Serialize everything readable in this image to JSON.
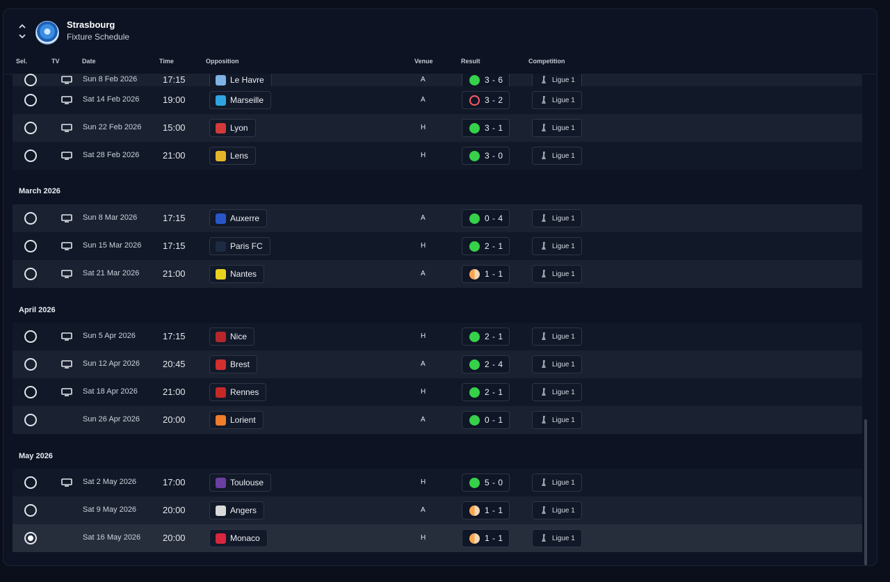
{
  "header": {
    "club": "Strasbourg",
    "subtitle": "Fixture Schedule"
  },
  "columns": {
    "sel": "Sel.",
    "tv": "TV",
    "date": "Date",
    "time": "Time",
    "opposition": "Opposition",
    "venue": "Venue",
    "result": "Result",
    "competition": "Competition"
  },
  "colors": {
    "win": "#37d04a",
    "loss": "#ff5c66",
    "draw": "#ffa54d",
    "background": "#0a0f1b"
  },
  "months": [
    "March 2026",
    "April 2026",
    "May 2026"
  ],
  "fixtures": [
    {
      "date": "Sun 8 Feb 2026",
      "time": "17:15",
      "opponent": "Le Havre",
      "venue": "A",
      "score": "3 - 6",
      "outcome": "win",
      "competition": "Ligue 1",
      "tv": true,
      "selected": false,
      "crest_color": "#7fb2e5"
    },
    {
      "date": "Sat 14 Feb 2026",
      "time": "19:00",
      "opponent": "Marseille",
      "venue": "A",
      "score": "3 - 2",
      "outcome": "loss",
      "competition": "Ligue 1",
      "tv": true,
      "selected": false,
      "crest_color": "#2fa4e0"
    },
    {
      "date": "Sun 22 Feb 2026",
      "time": "15:00",
      "opponent": "Lyon",
      "venue": "H",
      "score": "3 - 1",
      "outcome": "win",
      "competition": "Ligue 1",
      "tv": true,
      "selected": false,
      "crest_color": "#d23a3a"
    },
    {
      "date": "Sat 28 Feb 2026",
      "time": "21:00",
      "opponent": "Lens",
      "venue": "H",
      "score": "3 - 0",
      "outcome": "win",
      "competition": "Ligue 1",
      "tv": true,
      "selected": false,
      "crest_color": "#e5b52a"
    },
    {
      "date": "Sun 8 Mar 2026",
      "time": "17:15",
      "opponent": "Auxerre",
      "venue": "A",
      "score": "0 - 4",
      "outcome": "win",
      "competition": "Ligue 1",
      "tv": true,
      "selected": false,
      "crest_color": "#2a55c9"
    },
    {
      "date": "Sun 15 Mar 2026",
      "time": "17:15",
      "opponent": "Paris FC",
      "venue": "H",
      "score": "2 - 1",
      "outcome": "win",
      "competition": "Ligue 1",
      "tv": true,
      "selected": false,
      "crest_color": "#1d2a44"
    },
    {
      "date": "Sat 21 Mar 2026",
      "time": "21:00",
      "opponent": "Nantes",
      "venue": "A",
      "score": "1 - 1",
      "outcome": "draw",
      "competition": "Ligue 1",
      "tv": true,
      "selected": false,
      "crest_color": "#e8d21e"
    },
    {
      "date": "Sun 5 Apr 2026",
      "time": "17:15",
      "opponent": "Nice",
      "venue": "H",
      "score": "2 - 1",
      "outcome": "win",
      "competition": "Ligue 1",
      "tv": true,
      "selected": false,
      "crest_color": "#b8262c"
    },
    {
      "date": "Sun 12 Apr 2026",
      "time": "20:45",
      "opponent": "Brest",
      "venue": "A",
      "score": "2 - 4",
      "outcome": "win",
      "competition": "Ligue 1",
      "tv": true,
      "selected": false,
      "crest_color": "#d32f2f"
    },
    {
      "date": "Sat 18 Apr 2026",
      "time": "21:00",
      "opponent": "Rennes",
      "venue": "H",
      "score": "2 - 1",
      "outcome": "win",
      "competition": "Ligue 1",
      "tv": true,
      "selected": false,
      "crest_color": "#c62828"
    },
    {
      "date": "Sun 26 Apr 2026",
      "time": "20:00",
      "opponent": "Lorient",
      "venue": "A",
      "score": "0 - 1",
      "outcome": "win",
      "competition": "Ligue 1",
      "tv": false,
      "selected": false,
      "crest_color": "#ef7d2a"
    },
    {
      "date": "Sat 2 May 2026",
      "time": "17:00",
      "opponent": "Toulouse",
      "venue": "H",
      "score": "5 - 0",
      "outcome": "win",
      "competition": "Ligue 1",
      "tv": true,
      "selected": false,
      "crest_color": "#6a3fa0"
    },
    {
      "date": "Sat 9 May 2026",
      "time": "20:00",
      "opponent": "Angers",
      "venue": "A",
      "score": "1 - 1",
      "outcome": "draw",
      "competition": "Ligue 1",
      "tv": false,
      "selected": false,
      "crest_color": "#d9d9d9"
    },
    {
      "date": "Sat 16 May 2026",
      "time": "20:00",
      "opponent": "Monaco",
      "venue": "H",
      "score": "1 - 1",
      "outcome": "draw",
      "competition": "Ligue 1",
      "tv": false,
      "selected": true,
      "crest_color": "#d7263d"
    }
  ]
}
